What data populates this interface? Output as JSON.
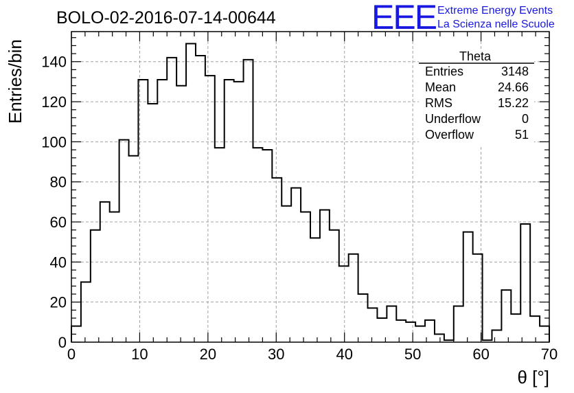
{
  "header": {
    "title": "BOLO-02-2016-07-14-00644",
    "logo_text": "EEE",
    "logo_line1": "Extreme Energy Events",
    "logo_line2": "La Scienza nelle Scuole",
    "logo_color": "#1818e0"
  },
  "stats_box": {
    "name": "Theta",
    "rows": [
      {
        "label": "Entries",
        "value": "3148"
      },
      {
        "label": "Mean",
        "value": "24.66"
      },
      {
        "label": "RMS",
        "value": "15.22"
      },
      {
        "label": "Underflow",
        "value": "0"
      },
      {
        "label": "Overflow",
        "value": "51"
      }
    ]
  },
  "chart_data": {
    "type": "bar",
    "title": "BOLO-02-2016-07-14-00644",
    "xlabel": "θ [°]",
    "ylabel": "Entries/bin",
    "xlim": [
      0,
      70
    ],
    "ylim": [
      0,
      155
    ],
    "bin_width": 1.4,
    "x_ticks": [
      0,
      10,
      20,
      30,
      40,
      50,
      60,
      70
    ],
    "y_ticks": [
      0,
      20,
      40,
      60,
      80,
      100,
      120,
      140
    ],
    "grid": true,
    "line_color": "#000000",
    "values": [
      8,
      30,
      56,
      70,
      65,
      101,
      93,
      131,
      119,
      131,
      142,
      128,
      149,
      143,
      133,
      97,
      131,
      130,
      141,
      97,
      96,
      82,
      68,
      77,
      65,
      52,
      66,
      56,
      38,
      44,
      24,
      17,
      12,
      18,
      11,
      10,
      8,
      11,
      4,
      1,
      18,
      55,
      44,
      1,
      6,
      26,
      14,
      59,
      13,
      8
    ]
  }
}
